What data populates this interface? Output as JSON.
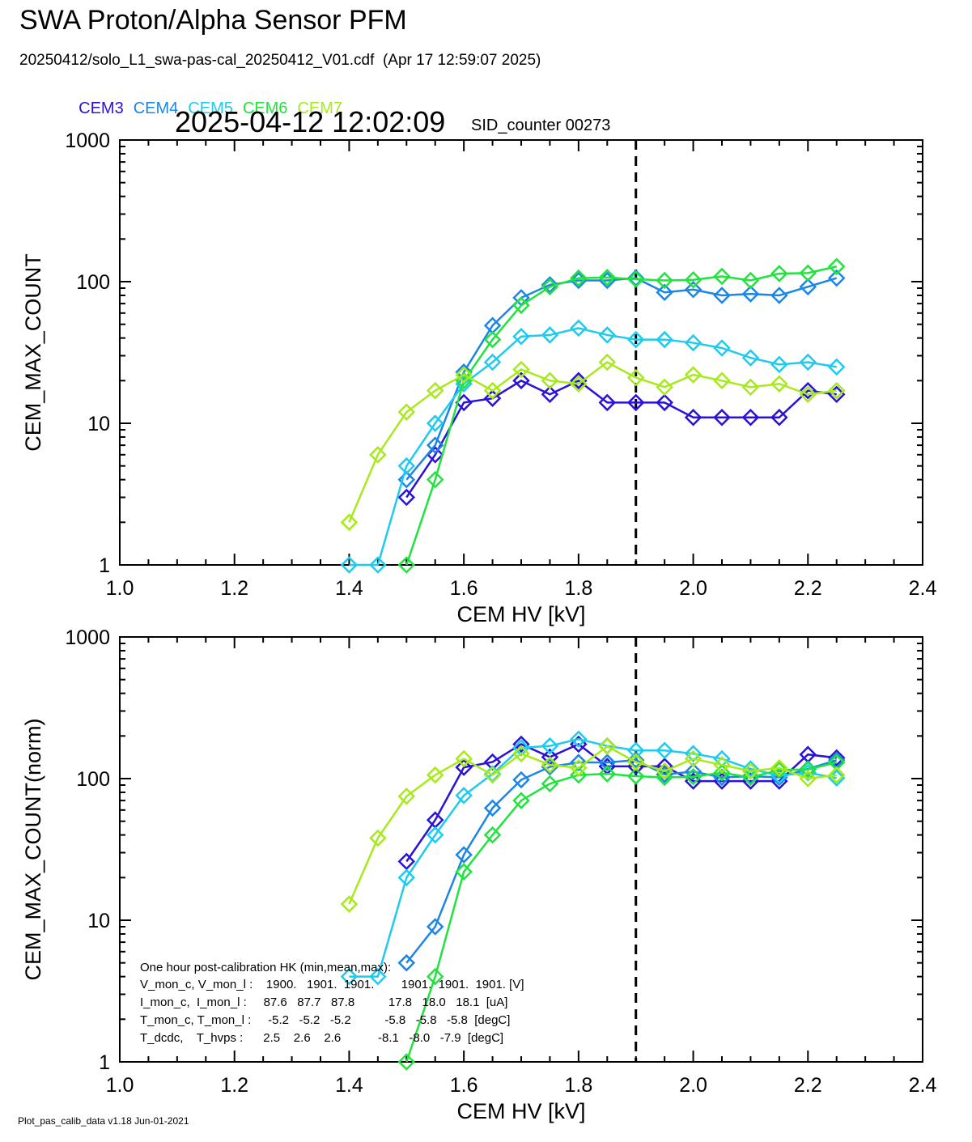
{
  "header": {
    "title": "SWA Proton/Alpha Sensor PFM",
    "subtitle": "20250412/solo_L1_swa-pas-cal_20250412_V01.cdf  (Apr 17 12:59:07 2025)",
    "timestamp": "2025-04-12 12:02:09",
    "sid_label": "SID_counter 00273",
    "legend": [
      {
        "label": "CEM3",
        "color": "#2a12d6"
      },
      {
        "label": "CEM4",
        "color": "#1c86e6"
      },
      {
        "label": "CEM5",
        "color": "#1ecbef"
      },
      {
        "label": "CEM6",
        "color": "#1ee43c"
      },
      {
        "label": "CEM7",
        "color": "#a6ea1a"
      }
    ]
  },
  "footer": "Plot_pas_calib_data v1.18 Jun-01-2021",
  "hk_box": {
    "title": "One hour post-calibration HK (min,mean,max):",
    "rows": [
      "V_mon_c, V_mon_l :    1900.   1901.  1901.        1901.  1901.  1901. [V]",
      "I_mon_c,  I_mon_l :     87.6   87.7   87.8          17.8   18.0   18.1  [uA]",
      "T_mon_c, T_mon_l :     -5.2   -5.2   -5.2          -5.8   -5.8   -5.8  [degC]",
      "T_dcdc,    T_hvps :      2.5    2.6    2.6           -8.1   -8.0   -7.9  [degC]"
    ]
  },
  "chart_data": [
    {
      "type": "line",
      "xlabel": "CEM HV [kV]",
      "ylabel": "CEM_MAX_COUNT",
      "xlim": [
        1.0,
        2.4
      ],
      "ylim": [
        1,
        1000
      ],
      "yscale": "log",
      "xticks": [
        "1.0",
        "1.2",
        "1.4",
        "1.6",
        "1.8",
        "2.0",
        "2.2",
        "2.4"
      ],
      "yticks": [
        "1",
        "10",
        "100",
        "1000"
      ],
      "reference_line_x": 1.9,
      "x": [
        1.4,
        1.45,
        1.5,
        1.55,
        1.6,
        1.65,
        1.7,
        1.75,
        1.8,
        1.85,
        1.9,
        1.95,
        2.0,
        2.05,
        2.1,
        2.15,
        2.2,
        2.25
      ],
      "series": [
        {
          "name": "CEM3",
          "color": "#2a12d6",
          "values": [
            null,
            null,
            3,
            6,
            14,
            15,
            20,
            16,
            20,
            14,
            14,
            14,
            11,
            11,
            11,
            11,
            17,
            16
          ]
        },
        {
          "name": "CEM4",
          "color": "#1c86e6",
          "values": [
            null,
            null,
            4,
            7,
            23,
            49,
            77,
            95,
            102,
            102,
            106,
            84,
            88,
            80,
            82,
            80,
            92,
            106
          ]
        },
        {
          "name": "CEM5",
          "color": "#1ecbef",
          "values": [
            1,
            1,
            5,
            10,
            19,
            27,
            41,
            42,
            47,
            42,
            39,
            39,
            37,
            34,
            29,
            26,
            27,
            25
          ]
        },
        {
          "name": "CEM6",
          "color": "#1ee43c",
          "values": [
            null,
            null,
            1,
            4,
            20,
            39,
            68,
            92,
            106,
            107,
            104,
            102,
            103,
            109,
            102,
            114,
            115,
            128
          ]
        },
        {
          "name": "CEM7",
          "color": "#a6ea1a",
          "values": [
            2,
            6,
            12,
            17,
            22,
            17,
            24,
            20,
            19,
            27,
            21,
            18,
            22,
            20,
            18,
            19,
            16,
            17
          ]
        }
      ]
    },
    {
      "type": "line",
      "xlabel": "CEM HV [kV]",
      "ylabel": "CEM_MAX_COUNT(norm)",
      "xlim": [
        1.0,
        2.4
      ],
      "ylim": [
        1,
        1000
      ],
      "yscale": "log",
      "xticks": [
        "1.0",
        "1.2",
        "1.4",
        "1.6",
        "1.8",
        "2.0",
        "2.2",
        "2.4"
      ],
      "yticks": [
        "1",
        "10",
        "100",
        "1000"
      ],
      "reference_line_x": 1.9,
      "x": [
        1.4,
        1.45,
        1.5,
        1.55,
        1.6,
        1.65,
        1.7,
        1.75,
        1.8,
        1.85,
        1.9,
        1.95,
        2.0,
        2.05,
        2.1,
        2.15,
        2.2,
        2.25
      ],
      "series": [
        {
          "name": "CEM3",
          "color": "#2a12d6",
          "values": [
            null,
            null,
            26,
            51,
            120,
            131,
            175,
            142,
            175,
            122,
            122,
            122,
            96,
            96,
            96,
            96,
            148,
            140
          ]
        },
        {
          "name": "CEM4",
          "color": "#1c86e6",
          "values": [
            null,
            null,
            5,
            9,
            29,
            62,
            98,
            121,
            130,
            130,
            135,
            107,
            112,
            102,
            104,
            102,
            117,
            135
          ]
        },
        {
          "name": "CEM5",
          "color": "#1ecbef",
          "values": [
            4,
            4,
            20,
            40,
            76,
            108,
            165,
            170,
            190,
            170,
            158,
            158,
            150,
            138,
            117,
            105,
            110,
            101
          ]
        },
        {
          "name": "CEM6",
          "color": "#1ee43c",
          "values": [
            null,
            null,
            1,
            4,
            22,
            40,
            70,
            92,
            106,
            108,
            104,
            102,
            103,
            110,
            102,
            115,
            116,
            130
          ]
        },
        {
          "name": "CEM7",
          "color": "#a6ea1a",
          "values": [
            13,
            38,
            75,
            106,
            138,
            106,
            150,
            125,
            119,
            169,
            131,
            113,
            138,
            125,
            113,
            119,
            100,
            106
          ]
        }
      ]
    }
  ]
}
